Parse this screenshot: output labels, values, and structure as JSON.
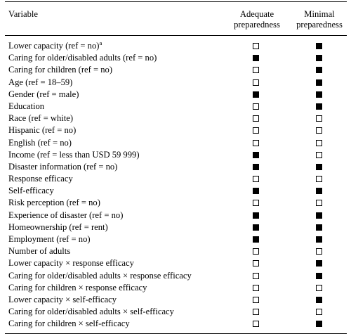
{
  "header": {
    "variable": "Variable",
    "adequate_line1": "Adequate",
    "adequate_line2": "preparedness",
    "minimal_line1": "Minimal",
    "minimal_line2": "preparedness"
  },
  "rows": [
    {
      "label": "Lower capacity (ref = no)",
      "sup": "a",
      "adequate": false,
      "minimal": true
    },
    {
      "label": "Caring for older/disabled adults (ref = no)",
      "sup": "",
      "adequate": true,
      "minimal": true
    },
    {
      "label": "Caring for children (ref = no)",
      "sup": "",
      "adequate": false,
      "minimal": true
    },
    {
      "label": "Age (ref = 18–59)",
      "sup": "",
      "adequate": false,
      "minimal": true
    },
    {
      "label": "Gender (ref = male)",
      "sup": "",
      "adequate": true,
      "minimal": true
    },
    {
      "label": "Education",
      "sup": "",
      "adequate": false,
      "minimal": true
    },
    {
      "label": "Race (ref = white)",
      "sup": "",
      "adequate": false,
      "minimal": false
    },
    {
      "label": "Hispanic (ref = no)",
      "sup": "",
      "adequate": false,
      "minimal": false
    },
    {
      "label": "English (ref = no)",
      "sup": "",
      "adequate": false,
      "minimal": false
    },
    {
      "label": "Income (ref = less than USD 59 999)",
      "sup": "",
      "adequate": true,
      "minimal": false
    },
    {
      "label": "Disaster information (ref = no)",
      "sup": "",
      "adequate": true,
      "minimal": true
    },
    {
      "label": "Response efficacy",
      "sup": "",
      "adequate": false,
      "minimal": false
    },
    {
      "label": "Self-efficacy",
      "sup": "",
      "adequate": true,
      "minimal": true
    },
    {
      "label": "Risk perception (ref = no)",
      "sup": "",
      "adequate": false,
      "minimal": false
    },
    {
      "label": "Experience of disaster (ref = no)",
      "sup": "",
      "adequate": true,
      "minimal": true
    },
    {
      "label": "Homeownership (ref = rent)",
      "sup": "",
      "adequate": true,
      "minimal": true
    },
    {
      "label": "Employment (ref = no)",
      "sup": "",
      "adequate": true,
      "minimal": true
    },
    {
      "label": "Number of adults",
      "sup": "",
      "adequate": false,
      "minimal": false
    },
    {
      "label": "Lower capacity × response efficacy",
      "sup": "",
      "adequate": false,
      "minimal": true
    },
    {
      "label": "Caring for older/disabled adults × response efficacy",
      "sup": "",
      "adequate": false,
      "minimal": true
    },
    {
      "label": "Caring for children × response efficacy",
      "sup": "",
      "adequate": false,
      "minimal": false
    },
    {
      "label": "Lower capacity × self-efficacy",
      "sup": "",
      "adequate": false,
      "minimal": true
    },
    {
      "label": "Caring for older/disabled adults × self-efficacy",
      "sup": "",
      "adequate": false,
      "minimal": false
    },
    {
      "label": "Caring for children × self-efficacy",
      "sup": "",
      "adequate": false,
      "minimal": true
    }
  ]
}
